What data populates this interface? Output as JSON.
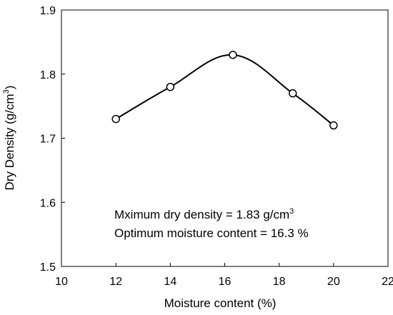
{
  "chart_data": {
    "type": "line",
    "xlabel": "Moisture content (%)",
    "ylabel_main": "Dry Density (g/cm",
    "ylabel_sup": "3",
    "ylabel_end": ")",
    "xlim": [
      10,
      22
    ],
    "ylim": [
      1.5,
      1.9
    ],
    "xticks": [
      10,
      12,
      14,
      16,
      18,
      20,
      22
    ],
    "yticks": [
      1.5,
      1.6,
      1.7,
      1.8,
      1.9
    ],
    "xtick_labels": [
      "10",
      "12",
      "14",
      "16",
      "18",
      "20",
      "22"
    ],
    "ytick_labels": [
      "1.5",
      "1.6",
      "1.7",
      "1.8",
      "1.9"
    ],
    "grid": false,
    "series": [
      {
        "x": [
          12,
          14,
          16.3,
          18.5,
          20
        ],
        "y": [
          1.73,
          1.78,
          1.83,
          1.77,
          1.72
        ],
        "marker": "open-circle",
        "smooth": true,
        "color": "#000000"
      }
    ],
    "annotations": {
      "line1_main": "Mximum dry density = 1.83 g/cm",
      "line1_sup": "3",
      "line2": "Optimum moisture content  = 16.3 %"
    }
  }
}
